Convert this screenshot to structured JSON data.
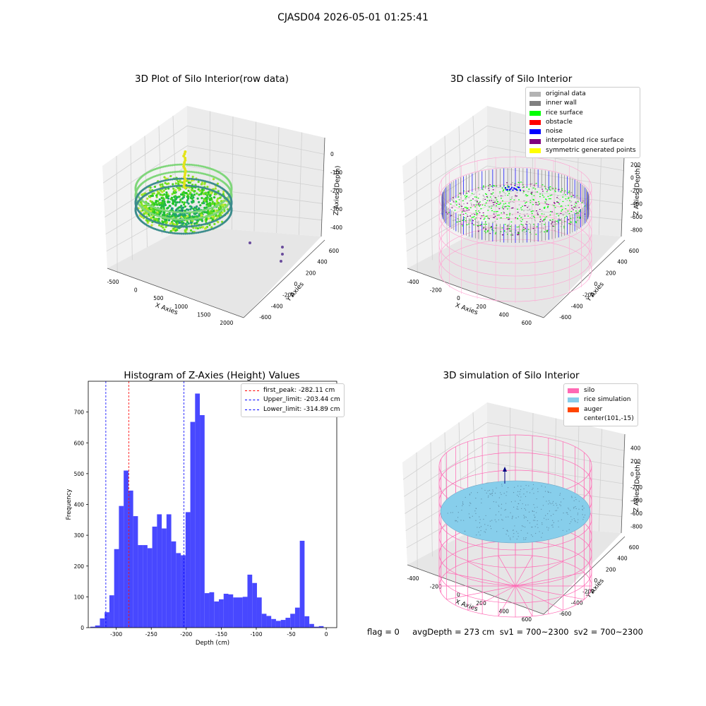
{
  "suptitle": "CJASD04 2026-05-01 01:25:41",
  "panels": {
    "raw": {
      "title": "3D Plot of Silo Interior(row data)",
      "xlabel": "X Axies",
      "ylabel": "Y Axies",
      "zlabel": "Z Axies (Depth)",
      "xticks": [
        "-500",
        "0",
        "500",
        "1000",
        "1500",
        "2000"
      ],
      "yticks": [
        "600",
        "400",
        "200",
        "0",
        "-200",
        "-400",
        "-600"
      ],
      "zticks": [
        "0",
        "-100",
        "-200",
        "-300",
        "-400"
      ]
    },
    "classify": {
      "title": "3D classify of Silo Interior",
      "xlabel": "X Axies",
      "ylabel": "Y Axies",
      "zlabel": "Z Axies (Depth)",
      "xticks": [
        "-400",
        "-200",
        "0",
        "200",
        "400",
        "600"
      ],
      "yticks": [
        "600",
        "400",
        "200",
        "0",
        "-200",
        "-400",
        "-600"
      ],
      "zticks": [
        "400",
        "200",
        "0",
        "-200",
        "-400",
        "-600",
        "-800"
      ],
      "legend": [
        {
          "label": "original data",
          "color": "#b3b3b3"
        },
        {
          "label": "inner wall",
          "color": "#808080"
        },
        {
          "label": "rice surface",
          "color": "#00ff00"
        },
        {
          "label": "obstacle",
          "color": "#ff0000"
        },
        {
          "label": "noise",
          "color": "#0000ff"
        },
        {
          "label": "interpolated rice surface",
          "color": "#800080"
        },
        {
          "label": "symmetric generated points",
          "color": "#ffff00"
        }
      ]
    },
    "simulation": {
      "title": "3D simulation of Silo Interior",
      "xlabel": "X Axies",
      "ylabel": "Y Axies",
      "zlabel": "Z Axies (Depth)",
      "xticks": [
        "-400",
        "-200",
        "0",
        "200",
        "400",
        "600"
      ],
      "yticks": [
        "600",
        "400",
        "200",
        "0",
        "-200",
        "-400",
        "-600"
      ],
      "zticks": [
        "400",
        "200",
        "0",
        "-200",
        "-400",
        "-600",
        "-800"
      ],
      "legend": [
        {
          "label": "silo",
          "color": "#ff69b4"
        },
        {
          "label": "rice simulation",
          "color": "#87ceeb"
        },
        {
          "label": "auger",
          "color": "#ff4500"
        },
        {
          "label": "center(101,-15)",
          "color": ""
        }
      ]
    }
  },
  "footer": "flag = 0     avgDepth = 273 cm  sv1 = 700~2300  sv2 = 700~2300",
  "chart_data": [
    {
      "type": "bar",
      "title": "Histogram of Z-Axies (Height) Values",
      "xlabel": "Depth (cm)",
      "ylabel": "Frequency",
      "xlim": [
        -340,
        15
      ],
      "ylim": [
        0,
        800
      ],
      "xticks": [
        -300,
        -250,
        -200,
        -150,
        -100,
        -50,
        0
      ],
      "yticks": [
        0,
        100,
        200,
        300,
        400,
        500,
        600,
        700
      ],
      "bin_start": -337,
      "bin_width": 6.8,
      "values": [
        3,
        7,
        30,
        50,
        105,
        255,
        395,
        510,
        445,
        362,
        268,
        268,
        258,
        328,
        368,
        322,
        368,
        280,
        242,
        235,
        375,
        668,
        760,
        690,
        112,
        115,
        85,
        92,
        110,
        108,
        98,
        98,
        100,
        172,
        145,
        98,
        45,
        38,
        28,
        22,
        25,
        32,
        45,
        65,
        282,
        37,
        12,
        3,
        5
      ],
      "bar_color": "#4848ff",
      "vlines": [
        {
          "label": "first_peak: -282.11 cm",
          "x": -282.11,
          "color": "#ff0000"
        },
        {
          "label": "Upper_limit: -203.44 cm",
          "x": -203.44,
          "color": "#0000ff"
        },
        {
          "label": "Lower_limit: -314.89 cm",
          "x": -314.89,
          "color": "#0000ff"
        }
      ],
      "legend": "top-right",
      "grid": false
    }
  ]
}
